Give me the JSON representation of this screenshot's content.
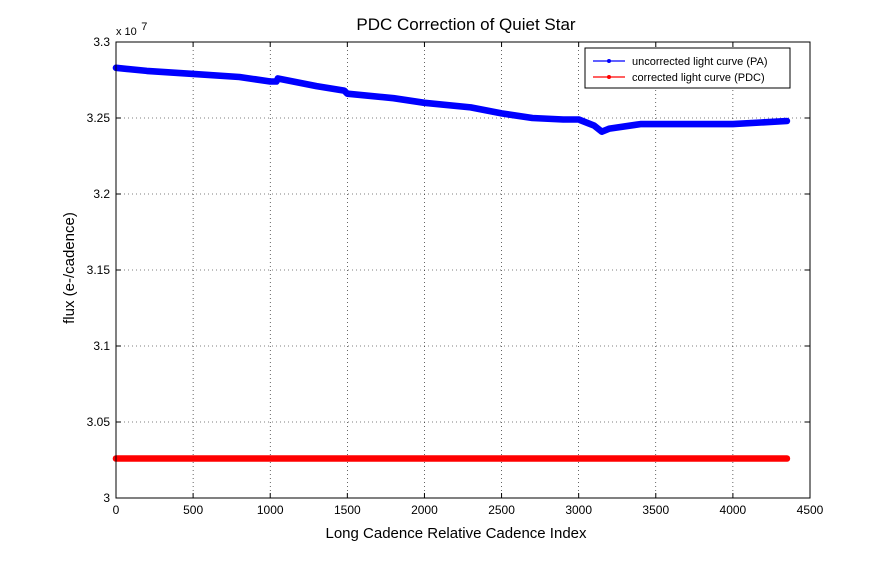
{
  "chart_data": {
    "type": "line",
    "title": "PDC Correction of Quiet Star",
    "xlabel": "Long Cadence Relative Cadence Index",
    "ylabel": "flux (e-/cadence)",
    "y_multiplier_label": "x 10",
    "y_multiplier_exponent": "7",
    "xlim": [
      0,
      4500
    ],
    "ylim": [
      3.0,
      3.3
    ],
    "xticks": [
      0,
      500,
      1000,
      1500,
      2000,
      2500,
      3000,
      3500,
      4000,
      4500
    ],
    "yticks": [
      3.0,
      3.05,
      3.1,
      3.15,
      3.2,
      3.25,
      3.3
    ],
    "ytick_labels": [
      "3",
      "3.05",
      "3.1",
      "3.15",
      "3.2",
      "3.25",
      "3.3"
    ],
    "grid": true,
    "legend_position": "top-right",
    "series": [
      {
        "name": "uncorrected light curve (PA)",
        "color": "#0000ff",
        "x": [
          0,
          200,
          500,
          800,
          1000,
          1040,
          1050,
          1300,
          1480,
          1500,
          1800,
          2000,
          2300,
          2500,
          2700,
          2900,
          3000,
          3100,
          3150,
          3200,
          3400,
          3700,
          4000,
          4350
        ],
        "y": [
          3.283,
          3.281,
          3.279,
          3.277,
          3.274,
          3.274,
          3.276,
          3.271,
          3.268,
          3.266,
          3.263,
          3.26,
          3.257,
          3.253,
          3.25,
          3.249,
          3.249,
          3.245,
          3.241,
          3.243,
          3.246,
          3.246,
          3.246,
          3.248
        ]
      },
      {
        "name": "corrected light curve (PDC)",
        "color": "#ff0000",
        "x": [
          0,
          500,
          1000,
          1500,
          2000,
          2500,
          3000,
          3500,
          4000,
          4350
        ],
        "y": [
          3.026,
          3.026,
          3.026,
          3.026,
          3.026,
          3.026,
          3.026,
          3.026,
          3.026,
          3.026
        ]
      }
    ]
  }
}
